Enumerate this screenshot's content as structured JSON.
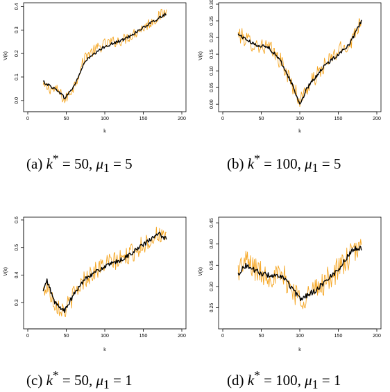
{
  "chart_data": [
    {
      "type": "line",
      "caption": "(a) k* = 50, μ1 = 5",
      "caption_parts": {
        "label": "(a)",
        "k": "50",
        "mu": "5"
      },
      "xlabel": "k",
      "ylabel": "V(k)",
      "xlim": [
        0,
        200
      ],
      "ylim": [
        -0.03,
        0.41
      ],
      "xticks": [
        0,
        50,
        100,
        150,
        200
      ],
      "yticks": [
        0.0,
        0.1,
        0.2,
        0.3,
        0.4
      ],
      "ytick_labels": [
        "0.0",
        "0.1",
        "0.2",
        "0.3",
        "0.4"
      ],
      "x_range": [
        20,
        180
      ],
      "series": [
        {
          "color": "#f5a623",
          "role": "noisy",
          "x": [
            20,
            40,
            48,
            60,
            75,
            100,
            125,
            150,
            180
          ],
          "values": [
            0.06,
            0.04,
            0.0,
            0.06,
            0.19,
            0.24,
            0.26,
            0.31,
            0.38
          ],
          "noise": 0.025
        },
        {
          "color": "#000000",
          "role": "smooth",
          "x": [
            20,
            40,
            48,
            60,
            75,
            100,
            125,
            150,
            180
          ],
          "values": [
            0.08,
            0.04,
            0.01,
            0.06,
            0.17,
            0.23,
            0.26,
            0.31,
            0.37
          ],
          "noise": 0.006
        }
      ]
    },
    {
      "type": "line",
      "caption": "(b) k* = 100, μ1 = 5",
      "caption_parts": {
        "label": "(b)",
        "k": "100",
        "mu": "5"
      },
      "xlabel": "k",
      "ylabel": "V(k)",
      "xlim": [
        0,
        200
      ],
      "ylim": [
        -0.01,
        0.3
      ],
      "xticks": [
        0,
        50,
        100,
        150,
        200
      ],
      "yticks": [
        0.0,
        0.05,
        0.1,
        0.15,
        0.2,
        0.25,
        0.3
      ],
      "ytick_labels": [
        "0.00",
        "0.05",
        "0.10",
        "0.15",
        "0.20",
        "0.25",
        "0.30"
      ],
      "x_range": [
        20,
        180
      ],
      "series": [
        {
          "color": "#f5a623",
          "role": "noisy",
          "x": [
            20,
            40,
            60,
            75,
            90,
            100,
            110,
            130,
            150,
            165,
            180
          ],
          "values": [
            0.21,
            0.18,
            0.17,
            0.13,
            0.06,
            0.01,
            0.05,
            0.11,
            0.16,
            0.18,
            0.26
          ],
          "noise": 0.025
        },
        {
          "color": "#000000",
          "role": "smooth",
          "x": [
            20,
            40,
            60,
            75,
            90,
            100,
            110,
            130,
            150,
            165,
            180
          ],
          "values": [
            0.21,
            0.18,
            0.17,
            0.13,
            0.06,
            0.0,
            0.05,
            0.11,
            0.15,
            0.18,
            0.25
          ],
          "noise": 0.005
        }
      ]
    },
    {
      "type": "line",
      "caption": "(c) k* = 50, μ1 = 1",
      "caption_parts": {
        "label": "(c)",
        "k": "50",
        "mu": "1"
      },
      "xlabel": "k",
      "ylabel": "V(k)",
      "xlim": [
        0,
        200
      ],
      "ylim": [
        0.22,
        0.605
      ],
      "xticks": [
        0,
        50,
        100,
        150,
        200
      ],
      "yticks": [
        0.3,
        0.4,
        0.5,
        0.6
      ],
      "ytick_labels": [
        "0.3",
        "0.4",
        "0.5",
        "0.6"
      ],
      "x_range": [
        20,
        180
      ],
      "series": [
        {
          "color": "#f5a623",
          "role": "noisy",
          "x": [
            20,
            25,
            35,
            48,
            60,
            75,
            100,
            125,
            150,
            170,
            180
          ],
          "values": [
            0.34,
            0.36,
            0.3,
            0.27,
            0.33,
            0.39,
            0.44,
            0.46,
            0.51,
            0.55,
            0.52
          ],
          "noise": 0.035
        },
        {
          "color": "#000000",
          "role": "smooth",
          "x": [
            20,
            25,
            35,
            48,
            60,
            75,
            100,
            125,
            150,
            170,
            180
          ],
          "values": [
            0.34,
            0.38,
            0.3,
            0.27,
            0.33,
            0.39,
            0.43,
            0.46,
            0.51,
            0.55,
            0.53
          ],
          "noise": 0.008
        }
      ]
    },
    {
      "type": "line",
      "caption": "(d) k* = 100, μ1 = 1",
      "caption_parts": {
        "label": "(d)",
        "k": "100",
        "mu": "1"
      },
      "xlabel": "k",
      "ylabel": "V(k)",
      "xlim": [
        0,
        200
      ],
      "ylim": [
        0.21,
        0.46
      ],
      "xticks": [
        0,
        50,
        100,
        150,
        200
      ],
      "yticks": [
        0.25,
        0.3,
        0.35,
        0.4,
        0.45
      ],
      "ytick_labels": [
        "0.25",
        "0.30",
        "0.35",
        "0.40",
        "0.45"
      ],
      "x_range": [
        20,
        180
      ],
      "series": [
        {
          "color": "#f5a623",
          "role": "noisy",
          "x": [
            20,
            30,
            50,
            80,
            100,
            120,
            150,
            170,
            180
          ],
          "values": [
            0.34,
            0.36,
            0.33,
            0.32,
            0.27,
            0.29,
            0.34,
            0.38,
            0.39
          ],
          "noise": 0.03
        },
        {
          "color": "#000000",
          "role": "smooth",
          "x": [
            20,
            30,
            50,
            80,
            100,
            120,
            150,
            170,
            180
          ],
          "values": [
            0.33,
            0.35,
            0.33,
            0.32,
            0.27,
            0.29,
            0.34,
            0.39,
            0.39
          ],
          "noise": 0.006
        }
      ]
    }
  ]
}
